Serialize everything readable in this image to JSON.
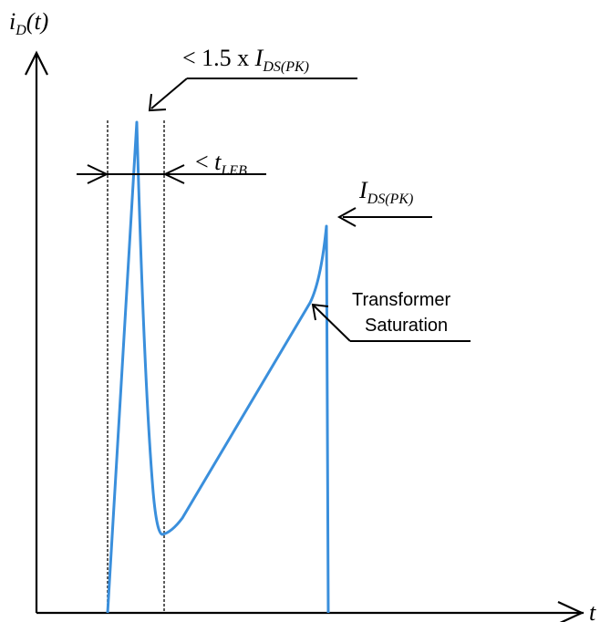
{
  "axes": {
    "y_label_main": "i",
    "y_label_sub": "D",
    "y_label_tail": "(t)",
    "x_label": "t"
  },
  "annotations": {
    "peak_label": {
      "prefix": "< 1.5 x ",
      "symbol": "I",
      "subscript": "DS(PK)"
    },
    "leb_label": {
      "prefix": "< ",
      "symbol": "t",
      "subscript": "LEB"
    },
    "ids_pk_label": {
      "symbol": "I",
      "subscript": "DS(PK)"
    },
    "saturation_label": {
      "line1": "Transformer",
      "line2": "Saturation"
    }
  },
  "colors": {
    "waveform": "#3a8fdc",
    "ink": "#000000",
    "dotted": "#333333"
  }
}
